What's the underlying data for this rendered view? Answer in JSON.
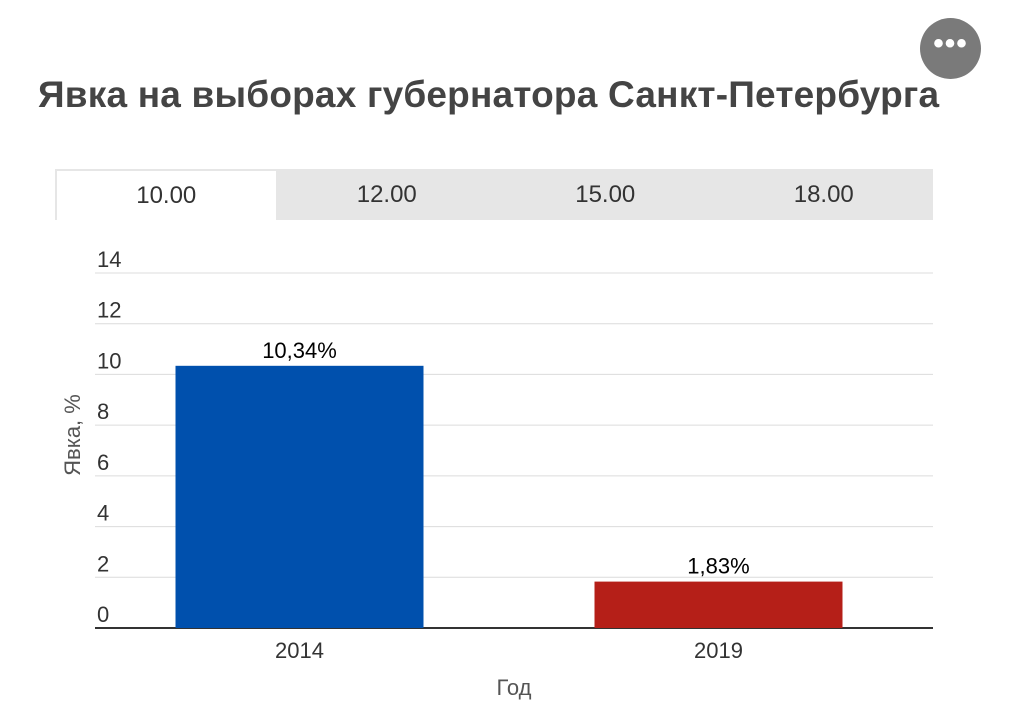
{
  "header": {
    "title": "Явка на выборах губернатора Санкт-Петербурга",
    "more_button_label": "•••"
  },
  "tabs": [
    {
      "label": "10.00",
      "active": true
    },
    {
      "label": "12.00",
      "active": false
    },
    {
      "label": "15.00",
      "active": false
    },
    {
      "label": "18.00",
      "active": false
    }
  ],
  "chart_data": {
    "type": "bar",
    "title": "Явка на выборах губернатора Санкт-Петербурга",
    "categories": [
      "2014",
      "2019"
    ],
    "values": [
      10.34,
      1.83
    ],
    "data_labels": [
      "10,34%",
      "1,83%"
    ],
    "colors": [
      "#0050ad",
      "#b51f18"
    ],
    "xlabel": "Год",
    "ylabel": "Явка, %",
    "ylim": [
      0,
      14
    ],
    "yticks": [
      0,
      2,
      4,
      6,
      8,
      10,
      12,
      14
    ],
    "grid": true,
    "legend": "none"
  }
}
